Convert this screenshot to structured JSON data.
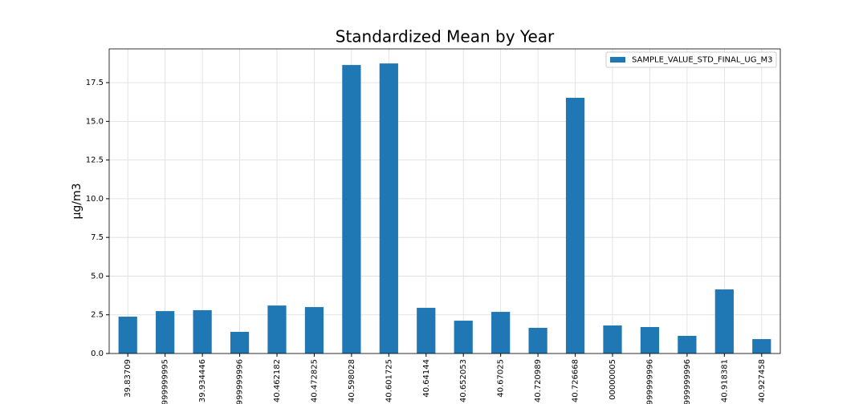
{
  "chart_data": {
    "type": "bar",
    "title": "Standardized Mean by Year",
    "y_label": "μg/m3",
    "categories": [
      "39.83709",
      "999999995",
      "39.934446",
      "999999996",
      "40.462182",
      "40.472825",
      "40.598028",
      "40.601725",
      "40.64144",
      "40.652053",
      "40.67025",
      "40.720989",
      "40.726668",
      "00000005",
      "999999996",
      "999999996",
      "40.918381",
      "40.927458"
    ],
    "series": [
      {
        "name": "SAMPLE_VALUE_STD_FINAL_UG_M3",
        "color": "#1f77b4",
        "values": [
          2.38,
          2.74,
          2.8,
          1.4,
          3.1,
          3.0,
          18.64,
          18.74,
          2.95,
          2.12,
          2.69,
          1.66,
          16.52,
          1.81,
          1.71,
          1.14,
          4.14,
          0.93
        ]
      }
    ],
    "ylim": [
      0,
      19.68
    ],
    "yticks": [
      {
        "value": 0,
        "label": "0.0"
      },
      2.5,
      {
        "value": 5,
        "label": "5.0"
      },
      7.5,
      {
        "value": 10,
        "label": "10.0"
      },
      12.5,
      {
        "value": 15,
        "label": "15.0"
      },
      17.5
    ],
    "grid": true,
    "legend": "upper right"
  }
}
